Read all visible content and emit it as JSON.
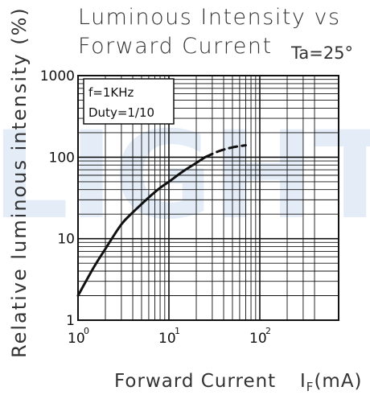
{
  "chart_data": {
    "type": "line",
    "title_line1": "Luminous Intensity vs",
    "title_line2": "Forward Current",
    "condition": "Ta=25°",
    "ylabel": "Relative luminous intensity (%)",
    "xlabel": "Forward Current",
    "xunit": "I",
    "xunit_sub": "F",
    "xunit_tail": "(mA)",
    "notes": [
      "f=1KHz",
      "Duty=1/10"
    ],
    "x_scale": "log",
    "y_scale": "log",
    "xlim": [
      1,
      400
    ],
    "ylim": [
      1,
      1000
    ],
    "grid": true,
    "x_ticks": [
      {
        "value": 1,
        "base": "10",
        "exp": "0"
      },
      {
        "value": 10,
        "base": "10",
        "exp": "1"
      },
      {
        "value": 100,
        "base": "10",
        "exp": "2"
      }
    ],
    "y_ticks": [
      {
        "value": 1,
        "label": "1"
      },
      {
        "value": 10,
        "label": "10"
      },
      {
        "value": 100,
        "label": "100"
      },
      {
        "value": 1000,
        "label": "1000"
      }
    ],
    "series": [
      {
        "style": "solid",
        "x": [
          1,
          1.5,
          2,
          3,
          4,
          6,
          8,
          10,
          14,
          20,
          25
        ],
        "y": [
          2,
          4.5,
          7.5,
          15,
          21,
          32,
          42,
          50,
          66,
          85,
          100
        ]
      },
      {
        "style": "dashed",
        "x": [
          25,
          35,
          50,
          70
        ],
        "y": [
          100,
          118,
          132,
          140
        ]
      }
    ],
    "colors": {
      "curve": "#111111",
      "grid": "#111111",
      "watermark": "#cfe0f2"
    }
  },
  "watermark": {
    "text": "LIGHT"
  }
}
